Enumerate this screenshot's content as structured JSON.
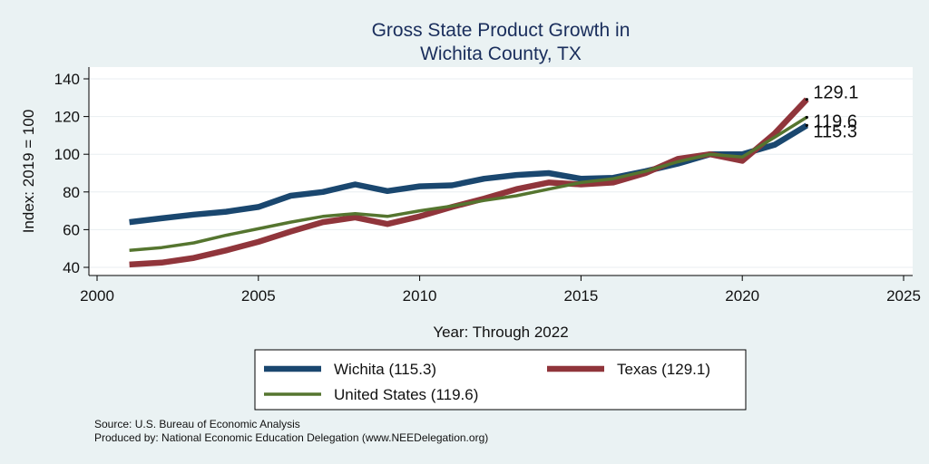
{
  "chart_data": {
    "type": "line",
    "title": [
      "Gross State Product Growth in",
      "Wichita County, TX"
    ],
    "xlabel": "Year: Through 2022",
    "ylabel": "Index: 2019 = 100",
    "xlim": [
      2000,
      2025
    ],
    "ylim": [
      35,
      145
    ],
    "xticks": [
      2000,
      2005,
      2010,
      2015,
      2020,
      2025
    ],
    "yticks": [
      40,
      60,
      80,
      100,
      120,
      140
    ],
    "grid": true,
    "x": [
      2001,
      2002,
      2003,
      2004,
      2005,
      2006,
      2007,
      2008,
      2009,
      2010,
      2011,
      2012,
      2013,
      2014,
      2015,
      2016,
      2017,
      2018,
      2019,
      2020,
      2021,
      2022
    ],
    "series": [
      {
        "name": "Wichita",
        "legend": "Wichita  (115.3)",
        "color": "#1a476f",
        "values": [
          64,
          66,
          68,
          69.5,
          72,
          78,
          80,
          84,
          80.5,
          83,
          83.5,
          87,
          89,
          90,
          87,
          87.5,
          91,
          95,
          100,
          100,
          105,
          115.3
        ],
        "end_label": "115.3"
      },
      {
        "name": "Texas",
        "legend": "Texas (129.1)",
        "color": "#90353b",
        "values": [
          41.5,
          42.5,
          45,
          49,
          53.5,
          59,
          64,
          66.5,
          63,
          67,
          72,
          76.5,
          81.5,
          85,
          84,
          85,
          90,
          97.5,
          100,
          96.5,
          111,
          129.1
        ],
        "end_label": "129.1"
      },
      {
        "name": "United States",
        "legend": "United States (119.6)",
        "color": "#55752f",
        "values": [
          49,
          50.5,
          53,
          57,
          60.5,
          64,
          67,
          68.5,
          67,
          70,
          72.5,
          75.5,
          78,
          81.5,
          85,
          87,
          91,
          96,
          100,
          98.5,
          109,
          119.6
        ],
        "end_label": "119.6"
      }
    ],
    "legend_position": "bottom",
    "source": "Source: U.S. Bureau of Economic Analysis",
    "produced_by": "Produced by: National Economic Education Delegation (www.NEEDelegation.org)"
  }
}
